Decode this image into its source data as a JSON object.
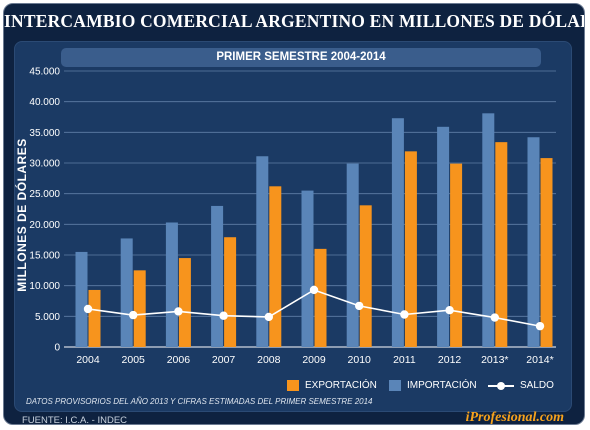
{
  "title": "INTERCAMBIO COMERCIAL ARGENTINO EN MILLONES DE DÓLARES",
  "subtitle": "PRIMER SEMESTRE 2004-2014",
  "note": "DATOS PROVISORIOS DEL AÑO 2013 Y CIFRAS ESTIMADAS DEL PRIMER SEMESTRE 2014",
  "source": "FUENTE: I.C.A. - INDEC",
  "brand": "iProfesional.com",
  "colors": {
    "background": "#0e2240",
    "panel": "#1b3a64",
    "importacion": "#5a85b8",
    "exportacion": "#f7941d",
    "saldo": "#ffffff"
  },
  "legend": {
    "exportacion": "EXPORTACIÓN",
    "importacion": "IMPORTACIÓN",
    "saldo": "SALDO"
  },
  "chart_data": {
    "type": "bar",
    "title": "INTERCAMBIO COMERCIAL ARGENTINO EN MILLONES DE DÓLARES",
    "subtitle": "PRIMER SEMESTRE 2004-2014",
    "ylabel": "MILLONES DE DÓLARES",
    "xlabel": "",
    "ylim": [
      0,
      45000
    ],
    "yticks": [
      "0",
      "5.000",
      "10.000",
      "15.000",
      "20.000",
      "25.000",
      "30.000",
      "35.000",
      "40.000",
      "45.000"
    ],
    "categories": [
      "2004",
      "2005",
      "2006",
      "2007",
      "2008",
      "2009",
      "2010",
      "2011",
      "2012",
      "2013*",
      "2014*"
    ],
    "series": [
      {
        "name": "IMPORTACIÓN",
        "type": "bar",
        "values": [
          15500,
          17700,
          20300,
          23000,
          31100,
          25500,
          29900,
          37300,
          35900,
          38100,
          34200
        ]
      },
      {
        "name": "EXPORTACIÓN",
        "type": "bar",
        "values": [
          9300,
          12500,
          14500,
          17900,
          26200,
          16000,
          23100,
          31900,
          29900,
          33400,
          30800
        ]
      },
      {
        "name": "SALDO",
        "type": "line",
        "values": [
          6200,
          5200,
          5800,
          5100,
          4900,
          9300,
          6700,
          5300,
          6000,
          4800,
          3400
        ]
      }
    ],
    "grid": true,
    "legend_position": "bottom-right"
  }
}
